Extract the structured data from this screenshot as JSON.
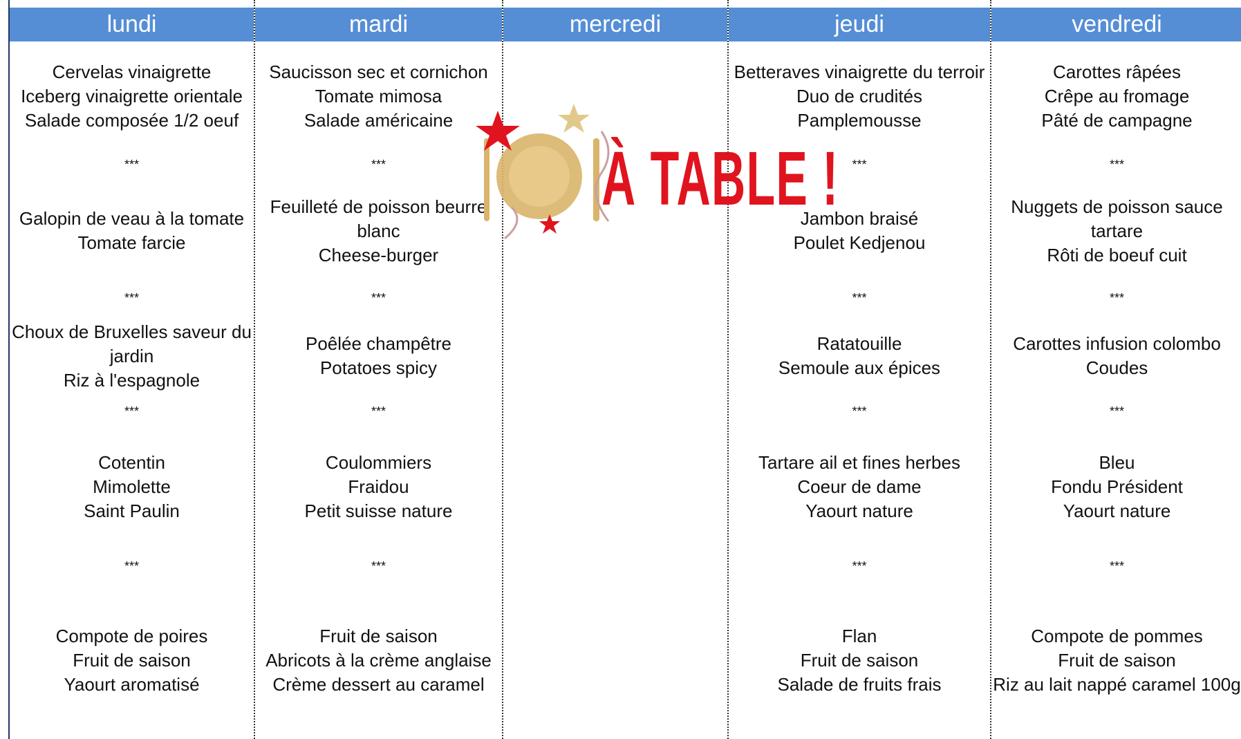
{
  "days": [
    {
      "name": "lundi",
      "courses": [
        [
          "Cervelas vinaigrette",
          "Iceberg vinaigrette orientale",
          "Salade composée 1/2 oeuf"
        ],
        [
          "Galopin de veau à la tomate",
          "Tomate farcie"
        ],
        [
          "Choux de Bruxelles saveur du jardin",
          "Riz à l'espagnole"
        ],
        [
          "Cotentin",
          "Mimolette",
          "Saint Paulin"
        ],
        [
          "Compote de poires",
          "Fruit de saison",
          "Yaourt aromatisé"
        ]
      ],
      "separators": [
        "***",
        "***",
        "***",
        "***"
      ]
    },
    {
      "name": "mardi",
      "courses": [
        [
          "Saucisson sec et cornichon",
          "Tomate mimosa",
          "Salade américaine"
        ],
        [
          "Feuilleté de poisson beurre blanc",
          "Cheese-burger"
        ],
        [
          "Poêlée champêtre",
          "Potatoes spicy"
        ],
        [
          "Coulommiers",
          "Fraidou",
          "Petit suisse nature"
        ],
        [
          "Fruit de saison",
          "Abricots à la crème anglaise",
          "Crème dessert au caramel"
        ]
      ],
      "separators": [
        "***",
        "***",
        "***",
        "***"
      ]
    },
    {
      "name": "mercredi",
      "courses": [],
      "separators": []
    },
    {
      "name": "jeudi",
      "courses": [
        [
          "Betteraves vinaigrette du terroir",
          "Duo de crudités",
          "Pamplemousse"
        ],
        [
          "Jambon braisé",
          "Poulet Kedjenou"
        ],
        [
          "Ratatouille",
          "Semoule aux épices"
        ],
        [
          "Tartare ail et fines herbes",
          "Coeur de dame",
          "Yaourt nature"
        ],
        [
          "Flan",
          "Fruit de saison",
          "Salade de fruits frais"
        ]
      ],
      "separators": [
        "***",
        "***",
        "***",
        "***"
      ]
    },
    {
      "name": "vendredi",
      "courses": [
        [
          "Carottes râpées",
          "Crêpe au fromage",
          "Pâté de campagne"
        ],
        [
          "Nuggets de poisson sauce tartare",
          "Rôti de boeuf cuit"
        ],
        [
          "Carottes infusion colombo",
          "Coudes"
        ],
        [
          "Bleu",
          "Fondu Président",
          "Yaourt nature"
        ],
        [
          "Compote de pommes",
          "Fruit de saison",
          "Riz au lait nappé caramel 100g"
        ]
      ],
      "separators": [
        "***",
        "***",
        "***",
        "***"
      ]
    }
  ],
  "logo": {
    "text": "À TABLE !"
  }
}
